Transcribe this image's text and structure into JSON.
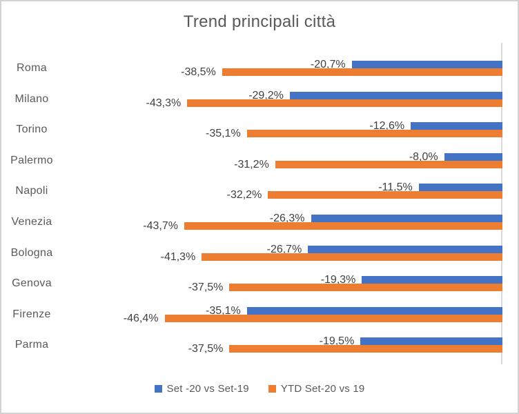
{
  "chart_data": {
    "type": "bar",
    "orientation": "horizontal",
    "title": "Trend principali città",
    "categories": [
      "Roma",
      "Milano",
      "Torino",
      "Palermo",
      "Napoli",
      "Venezia",
      "Bologna",
      "Genova",
      "Firenze",
      "Parma"
    ],
    "series": [
      {
        "name": "Set -20 vs Set-19",
        "color": "#4472C4",
        "values": [
          -20.7,
          -29.2,
          -12.6,
          -8.0,
          -11.5,
          -26.3,
          -26.7,
          -19.3,
          -35.1,
          -19.5
        ],
        "labels": [
          "-20,7%",
          "-29,2%",
          "-12,6%",
          "-8,0%",
          "-11,5%",
          "-26,3%",
          "-26,7%",
          "-19,3%",
          "-35,1%",
          "-19,5%"
        ]
      },
      {
        "name": "YTD Set-20 vs 19",
        "color": "#ED7D31",
        "values": [
          -38.5,
          -43.3,
          -35.1,
          -31.2,
          -32.2,
          -43.7,
          -41.3,
          -37.5,
          -46.4,
          -37.5
        ],
        "labels": [
          "-38,5%",
          "-43,3%",
          "-35,1%",
          "-31,2%",
          "-32,2%",
          "-43,7%",
          "-41,3%",
          "-37,5%",
          "-46,4%",
          "-37,5%"
        ]
      }
    ],
    "value_axis": {
      "min": -60,
      "max": 0,
      "zero_line_color": "#d9d9d9"
    },
    "data_labels": "outside-end",
    "legend_position": "bottom",
    "grid": false
  }
}
